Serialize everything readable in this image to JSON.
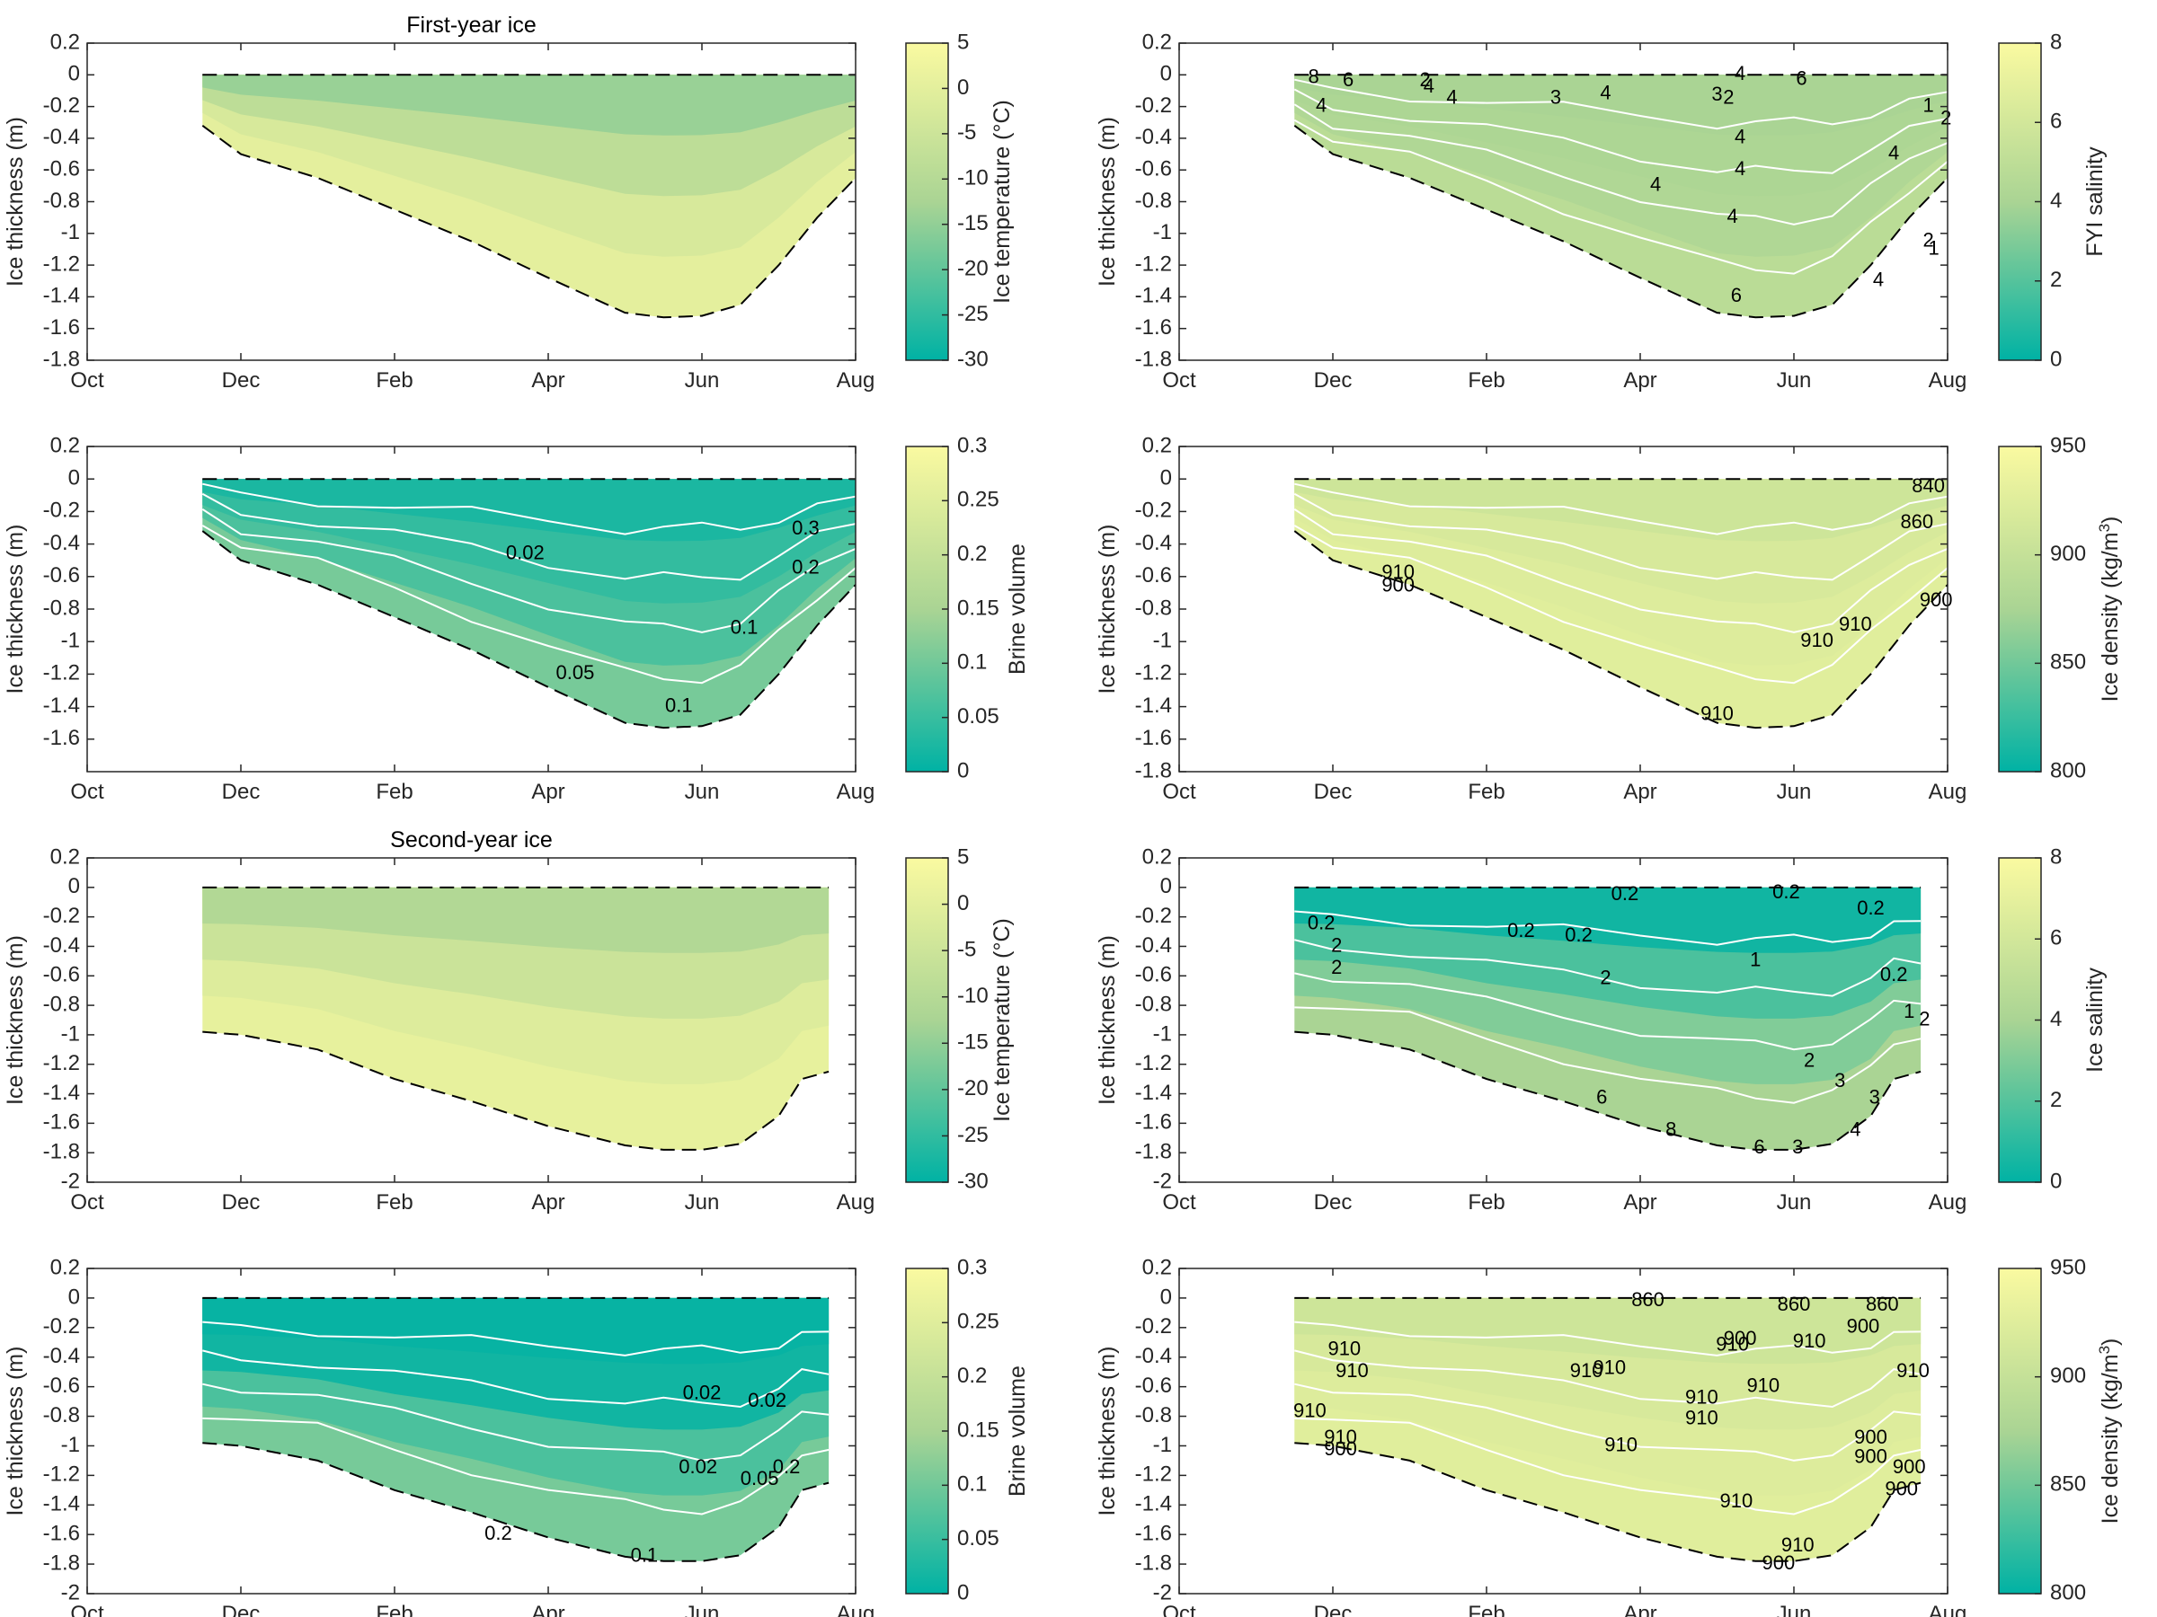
{
  "figure": {
    "title_fyi": "First-year ice",
    "title_syi": "Second-year ice"
  },
  "chart_data": [
    {
      "id": "fyi-temperature",
      "type": "heatmap",
      "title": "First-year ice",
      "xlabel": "",
      "ylabel": "Ice thickness (m)",
      "colorbar_label": "Ice temperature (°C)",
      "x_ticks": [
        "Oct",
        "Dec",
        "Feb",
        "Apr",
        "Jun",
        "Aug"
      ],
      "y_ticks": [
        0.2,
        0,
        -0.2,
        -0.4,
        -0.6,
        -0.8,
        -1,
        -1.2,
        -1.4,
        -1.6,
        -1.8
      ],
      "ylim": [
        -1.8,
        0.2
      ],
      "clim": [
        -30,
        5
      ],
      "colorbar_ticks": [
        5,
        0,
        -5,
        -10,
        -15,
        -20,
        -25,
        -30
      ],
      "grid": false,
      "bottom_boundary": [
        [
          1.5,
          -0.32
        ],
        [
          2,
          -0.5
        ],
        [
          3,
          -0.65
        ],
        [
          4,
          -0.85
        ],
        [
          5,
          -1.05
        ],
        [
          6,
          -1.28
        ],
        [
          7,
          -1.5
        ],
        [
          7.5,
          -1.53
        ],
        [
          8,
          -1.52
        ],
        [
          8.5,
          -1.45
        ],
        [
          9,
          -1.2
        ],
        [
          9.5,
          -0.9
        ],
        [
          10,
          -0.65
        ]
      ],
      "contour_labels": []
    },
    {
      "id": "fyi-salinity",
      "type": "heatmap",
      "title": "",
      "xlabel": "",
      "ylabel": "Ice thickness (m)",
      "colorbar_label": "FYI salinity",
      "x_ticks": [
        "Oct",
        "Dec",
        "Feb",
        "Apr",
        "Jun",
        "Aug"
      ],
      "y_ticks": [
        0.2,
        0,
        -0.2,
        -0.4,
        -0.6,
        -0.8,
        -1,
        -1.2,
        -1.4,
        -1.6,
        -1.8
      ],
      "ylim": [
        -1.8,
        0.2
      ],
      "clim": [
        0,
        8
      ],
      "colorbar_ticks": [
        8,
        6,
        4,
        2,
        0
      ],
      "grid": false,
      "bottom_boundary": [
        [
          1.5,
          -0.32
        ],
        [
          2,
          -0.5
        ],
        [
          3,
          -0.65
        ],
        [
          4,
          -0.85
        ],
        [
          5,
          -1.05
        ],
        [
          6,
          -1.28
        ],
        [
          7,
          -1.5
        ],
        [
          7.5,
          -1.53
        ],
        [
          8,
          -1.52
        ],
        [
          8.5,
          -1.45
        ],
        [
          9,
          -1.2
        ],
        [
          9.5,
          -0.9
        ],
        [
          10,
          -0.65
        ]
      ],
      "contour_labels": [
        {
          "x": 1.75,
          "y": -0.02,
          "text": "8"
        },
        {
          "x": 2.2,
          "y": -0.04,
          "text": "6"
        },
        {
          "x": 1.85,
          "y": -0.2,
          "text": "4"
        },
        {
          "x": 3.2,
          "y": -0.04,
          "text": "2"
        },
        {
          "x": 3.25,
          "y": -0.08,
          "text": "4"
        },
        {
          "x": 3.55,
          "y": -0.15,
          "text": "4"
        },
        {
          "x": 4.9,
          "y": -0.15,
          "text": "3"
        },
        {
          "x": 5.55,
          "y": -0.12,
          "text": "4"
        },
        {
          "x": 7.0,
          "y": -0.13,
          "text": "3"
        },
        {
          "x": 7.15,
          "y": -0.15,
          "text": "2"
        },
        {
          "x": 7.3,
          "y": 0.0,
          "text": "4"
        },
        {
          "x": 8.1,
          "y": -0.03,
          "text": "6"
        },
        {
          "x": 7.3,
          "y": -0.4,
          "text": "4"
        },
        {
          "x": 7.3,
          "y": -0.6,
          "text": "4"
        },
        {
          "x": 9.3,
          "y": -0.5,
          "text": "4"
        },
        {
          "x": 6.2,
          "y": -0.7,
          "text": "4"
        },
        {
          "x": 7.2,
          "y": -0.9,
          "text": "4"
        },
        {
          "x": 9.75,
          "y": -0.2,
          "text": "1"
        },
        {
          "x": 9.98,
          "y": -0.28,
          "text": "2"
        },
        {
          "x": 9.75,
          "y": -1.05,
          "text": "2"
        },
        {
          "x": 9.82,
          "y": -1.1,
          "text": "1"
        },
        {
          "x": 9.1,
          "y": -1.3,
          "text": "4"
        },
        {
          "x": 7.25,
          "y": -1.4,
          "text": "6"
        }
      ]
    },
    {
      "id": "fyi-brine",
      "type": "heatmap",
      "title": "",
      "xlabel": "",
      "ylabel": "Ice thickness (m)",
      "colorbar_label": "Brine volume",
      "x_ticks": [
        "Oct",
        "Dec",
        "Feb",
        "Apr",
        "Jun",
        "Aug"
      ],
      "y_ticks": [
        0.2,
        0,
        -0.2,
        -0.4,
        -0.6,
        -0.8,
        -1,
        -1.2,
        -1.4,
        -1.6
      ],
      "ylim": [
        -1.8,
        0.2
      ],
      "clim": [
        0,
        0.3
      ],
      "colorbar_ticks": [
        0.3,
        0.25,
        0.2,
        0.15,
        0.1,
        0.05,
        0
      ],
      "grid": false,
      "bottom_boundary": [
        [
          1.5,
          -0.32
        ],
        [
          2,
          -0.5
        ],
        [
          3,
          -0.65
        ],
        [
          4,
          -0.85
        ],
        [
          5,
          -1.05
        ],
        [
          6,
          -1.28
        ],
        [
          7,
          -1.5
        ],
        [
          7.5,
          -1.53
        ],
        [
          8,
          -1.52
        ],
        [
          8.5,
          -1.45
        ],
        [
          9,
          -1.2
        ],
        [
          9.5,
          -0.9
        ],
        [
          10,
          -0.65
        ]
      ],
      "contour_labels": [
        {
          "x": 5.7,
          "y": -0.46,
          "text": "0.02"
        },
        {
          "x": 9.35,
          "y": -0.31,
          "text": "0.3"
        },
        {
          "x": 9.35,
          "y": -0.55,
          "text": "0.2"
        },
        {
          "x": 8.55,
          "y": -0.92,
          "text": "0.1"
        },
        {
          "x": 6.35,
          "y": -1.2,
          "text": "0.05"
        },
        {
          "x": 7.7,
          "y": -1.4,
          "text": "0.1"
        }
      ]
    },
    {
      "id": "fyi-density",
      "type": "heatmap",
      "title": "",
      "xlabel": "",
      "ylabel": "Ice thickness (m)",
      "colorbar_label": "Ice density (kg/m3)",
      "x_ticks": [
        "Oct",
        "Dec",
        "Feb",
        "Apr",
        "Jun",
        "Aug"
      ],
      "y_ticks": [
        0.2,
        0,
        -0.2,
        -0.4,
        -0.6,
        -0.8,
        -1,
        -1.2,
        -1.4,
        -1.6,
        -1.8
      ],
      "ylim": [
        -1.8,
        0.2
      ],
      "clim": [
        800,
        950
      ],
      "colorbar_ticks": [
        950,
        900,
        850,
        800
      ],
      "grid": false,
      "bottom_boundary": [
        [
          1.5,
          -0.32
        ],
        [
          2,
          -0.5
        ],
        [
          3,
          -0.65
        ],
        [
          4,
          -0.85
        ],
        [
          5,
          -1.05
        ],
        [
          6,
          -1.28
        ],
        [
          7,
          -1.5
        ],
        [
          7.5,
          -1.53
        ],
        [
          8,
          -1.52
        ],
        [
          8.5,
          -1.45
        ],
        [
          9,
          -1.2
        ],
        [
          9.5,
          -0.9
        ],
        [
          10,
          -0.65
        ]
      ],
      "contour_labels": [
        {
          "x": 2.85,
          "y": -0.58,
          "text": "910"
        },
        {
          "x": 2.85,
          "y": -0.66,
          "text": "900"
        },
        {
          "x": 9.75,
          "y": -0.05,
          "text": "840"
        },
        {
          "x": 9.6,
          "y": -0.27,
          "text": "860"
        },
        {
          "x": 8.3,
          "y": -1.0,
          "text": "910"
        },
        {
          "x": 8.8,
          "y": -0.9,
          "text": "910"
        },
        {
          "x": 7.0,
          "y": -1.45,
          "text": "910"
        },
        {
          "x": 9.85,
          "y": -0.75,
          "text": "900"
        }
      ]
    },
    {
      "id": "syi-temperature",
      "type": "heatmap",
      "title": "Second-year ice",
      "xlabel": "",
      "ylabel": "Ice thickness (m)",
      "colorbar_label": "Ice temperature (°C)",
      "x_ticks": [
        "Oct",
        "Dec",
        "Feb",
        "Apr",
        "Jun",
        "Aug"
      ],
      "y_ticks": [
        0.2,
        0,
        -0.2,
        -0.4,
        -0.6,
        -0.8,
        -1,
        -1.2,
        -1.4,
        -1.6,
        -1.8,
        -2
      ],
      "ylim": [
        -2,
        0.2
      ],
      "clim": [
        -30,
        5
      ],
      "colorbar_ticks": [
        5,
        0,
        -5,
        -10,
        -15,
        -20,
        -25,
        -30
      ],
      "grid": false,
      "bottom_boundary": [
        [
          1.5,
          -0.98
        ],
        [
          2,
          -1.0
        ],
        [
          3,
          -1.1
        ],
        [
          4,
          -1.3
        ],
        [
          5,
          -1.45
        ],
        [
          6,
          -1.62
        ],
        [
          7,
          -1.75
        ],
        [
          7.5,
          -1.78
        ],
        [
          8,
          -1.78
        ],
        [
          8.5,
          -1.74
        ],
        [
          9,
          -1.55
        ],
        [
          9.3,
          -1.3
        ],
        [
          9.65,
          -1.25
        ]
      ],
      "contour_labels": []
    },
    {
      "id": "syi-salinity",
      "type": "heatmap",
      "title": "",
      "xlabel": "",
      "ylabel": "Ice thickness (m)",
      "colorbar_label": "Ice salinity",
      "x_ticks": [
        "Oct",
        "Dec",
        "Feb",
        "Apr",
        "Jun",
        "Aug"
      ],
      "y_ticks": [
        0.2,
        0,
        -0.2,
        -0.4,
        -0.6,
        -0.8,
        -1,
        -1.2,
        -1.4,
        -1.6,
        -1.8,
        -2
      ],
      "ylim": [
        -2,
        0.2
      ],
      "clim": [
        0,
        8
      ],
      "colorbar_ticks": [
        8,
        6,
        4,
        2,
        0
      ],
      "grid": false,
      "bottom_boundary": [
        [
          1.5,
          -0.98
        ],
        [
          2,
          -1.0
        ],
        [
          3,
          -1.1
        ],
        [
          4,
          -1.3
        ],
        [
          5,
          -1.45
        ],
        [
          6,
          -1.62
        ],
        [
          7,
          -1.75
        ],
        [
          7.5,
          -1.78
        ],
        [
          8,
          -1.78
        ],
        [
          8.5,
          -1.74
        ],
        [
          9,
          -1.55
        ],
        [
          9.3,
          -1.3
        ],
        [
          9.65,
          -1.25
        ]
      ],
      "contour_labels": [
        {
          "x": 5.8,
          "y": -0.05,
          "text": "0.2"
        },
        {
          "x": 7.9,
          "y": -0.04,
          "text": "0.2"
        },
        {
          "x": 1.85,
          "y": -0.25,
          "text": "0.2"
        },
        {
          "x": 9.0,
          "y": -0.15,
          "text": "0.2"
        },
        {
          "x": 4.45,
          "y": -0.3,
          "text": "0.2"
        },
        {
          "x": 5.2,
          "y": -0.33,
          "text": "0.2"
        },
        {
          "x": 2.05,
          "y": -0.4,
          "text": "2"
        },
        {
          "x": 2.05,
          "y": -0.55,
          "text": "2"
        },
        {
          "x": 7.5,
          "y": -0.5,
          "text": "1"
        },
        {
          "x": 5.55,
          "y": -0.62,
          "text": "2"
        },
        {
          "x": 9.3,
          "y": -0.6,
          "text": "0.2"
        },
        {
          "x": 9.5,
          "y": -0.85,
          "text": "1"
        },
        {
          "x": 9.7,
          "y": -0.9,
          "text": "2"
        },
        {
          "x": 8.2,
          "y": -1.18,
          "text": "2"
        },
        {
          "x": 8.6,
          "y": -1.32,
          "text": "3"
        },
        {
          "x": 9.05,
          "y": -1.43,
          "text": "3"
        },
        {
          "x": 8.8,
          "y": -1.65,
          "text": "4"
        },
        {
          "x": 5.5,
          "y": -1.43,
          "text": "6"
        },
        {
          "x": 6.4,
          "y": -1.65,
          "text": "8"
        },
        {
          "x": 7.55,
          "y": -1.77,
          "text": "6"
        },
        {
          "x": 8.05,
          "y": -1.77,
          "text": "3"
        }
      ]
    },
    {
      "id": "syi-brine",
      "type": "heatmap",
      "title": "",
      "xlabel": "",
      "ylabel": "Ice thickness (m)",
      "colorbar_label": "Brine volume",
      "x_ticks": [
        "Oct",
        "Dec",
        "Feb",
        "Apr",
        "Jun",
        "Aug"
      ],
      "y_ticks": [
        0.2,
        0,
        -0.2,
        -0.4,
        -0.6,
        -0.8,
        -1,
        -1.2,
        -1.4,
        -1.6,
        -1.8,
        -2
      ],
      "ylim": [
        -2,
        0.2
      ],
      "clim": [
        0,
        0.3
      ],
      "colorbar_ticks": [
        0.3,
        0.25,
        0.2,
        0.15,
        0.1,
        0.05,
        0
      ],
      "grid": false,
      "bottom_boundary": [
        [
          1.5,
          -0.98
        ],
        [
          2,
          -1.0
        ],
        [
          3,
          -1.1
        ],
        [
          4,
          -1.3
        ],
        [
          5,
          -1.45
        ],
        [
          6,
          -1.62
        ],
        [
          7,
          -1.75
        ],
        [
          7.5,
          -1.78
        ],
        [
          8,
          -1.78
        ],
        [
          8.5,
          -1.74
        ],
        [
          9,
          -1.55
        ],
        [
          9.3,
          -1.3
        ],
        [
          9.65,
          -1.25
        ]
      ],
      "contour_labels": [
        {
          "x": 8.0,
          "y": -0.65,
          "text": "0.02"
        },
        {
          "x": 8.85,
          "y": -0.7,
          "text": "0.02"
        },
        {
          "x": 7.95,
          "y": -1.15,
          "text": "0.02"
        },
        {
          "x": 8.75,
          "y": -1.23,
          "text": "0.05"
        },
        {
          "x": 9.1,
          "y": -1.15,
          "text": "0.2"
        },
        {
          "x": 5.35,
          "y": -1.6,
          "text": "0.2"
        },
        {
          "x": 7.25,
          "y": -1.75,
          "text": "0.1"
        }
      ]
    },
    {
      "id": "syi-density",
      "type": "heatmap",
      "title": "",
      "xlabel": "",
      "ylabel": "Ice thickness (m)",
      "colorbar_label": "Ice density (kg/m3)",
      "x_ticks": [
        "Oct",
        "Dec",
        "Feb",
        "Apr",
        "Jun",
        "Aug"
      ],
      "y_ticks": [
        0.2,
        0,
        -0.2,
        -0.4,
        -0.6,
        -0.8,
        -1,
        -1.2,
        -1.4,
        -1.6,
        -1.8,
        -2
      ],
      "ylim": [
        -2,
        0.2
      ],
      "clim": [
        800,
        950
      ],
      "colorbar_ticks": [
        950,
        900,
        850,
        800
      ],
      "grid": false,
      "bottom_boundary": [
        [
          1.5,
          -0.98
        ],
        [
          2,
          -1.0
        ],
        [
          3,
          -1.1
        ],
        [
          4,
          -1.3
        ],
        [
          5,
          -1.45
        ],
        [
          6,
          -1.62
        ],
        [
          7,
          -1.75
        ],
        [
          7.5,
          -1.78
        ],
        [
          8,
          -1.78
        ],
        [
          8.5,
          -1.74
        ],
        [
          9,
          -1.55
        ],
        [
          9.3,
          -1.3
        ],
        [
          9.65,
          -1.25
        ]
      ],
      "contour_labels": [
        {
          "x": 6.1,
          "y": -0.02,
          "text": "860"
        },
        {
          "x": 8.0,
          "y": -0.05,
          "text": "860"
        },
        {
          "x": 9.15,
          "y": -0.05,
          "text": "860"
        },
        {
          "x": 2.15,
          "y": -0.35,
          "text": "910"
        },
        {
          "x": 2.25,
          "y": -0.5,
          "text": "910"
        },
        {
          "x": 7.2,
          "y": -0.32,
          "text": "910"
        },
        {
          "x": 7.3,
          "y": -0.28,
          "text": "900"
        },
        {
          "x": 8.2,
          "y": -0.3,
          "text": "910"
        },
        {
          "x": 8.9,
          "y": -0.2,
          "text": "900"
        },
        {
          "x": 9.55,
          "y": -0.5,
          "text": "910"
        },
        {
          "x": 5.3,
          "y": -0.5,
          "text": "910"
        },
        {
          "x": 5.6,
          "y": -0.48,
          "text": "910"
        },
        {
          "x": 1.7,
          "y": -0.77,
          "text": "910"
        },
        {
          "x": 6.8,
          "y": -0.68,
          "text": "910"
        },
        {
          "x": 7.6,
          "y": -0.6,
          "text": "910"
        },
        {
          "x": 6.8,
          "y": -0.82,
          "text": "910"
        },
        {
          "x": 5.75,
          "y": -1.0,
          "text": "910"
        },
        {
          "x": 2.1,
          "y": -0.95,
          "text": "910"
        },
        {
          "x": 2.1,
          "y": -1.03,
          "text": "900"
        },
        {
          "x": 9.0,
          "y": -0.95,
          "text": "900"
        },
        {
          "x": 9.0,
          "y": -1.08,
          "text": "900"
        },
        {
          "x": 9.5,
          "y": -1.15,
          "text": "900"
        },
        {
          "x": 9.4,
          "y": -1.3,
          "text": "900"
        },
        {
          "x": 7.25,
          "y": -1.38,
          "text": "910"
        },
        {
          "x": 8.05,
          "y": -1.68,
          "text": "910"
        },
        {
          "x": 7.8,
          "y": -1.8,
          "text": "900"
        }
      ]
    }
  ]
}
